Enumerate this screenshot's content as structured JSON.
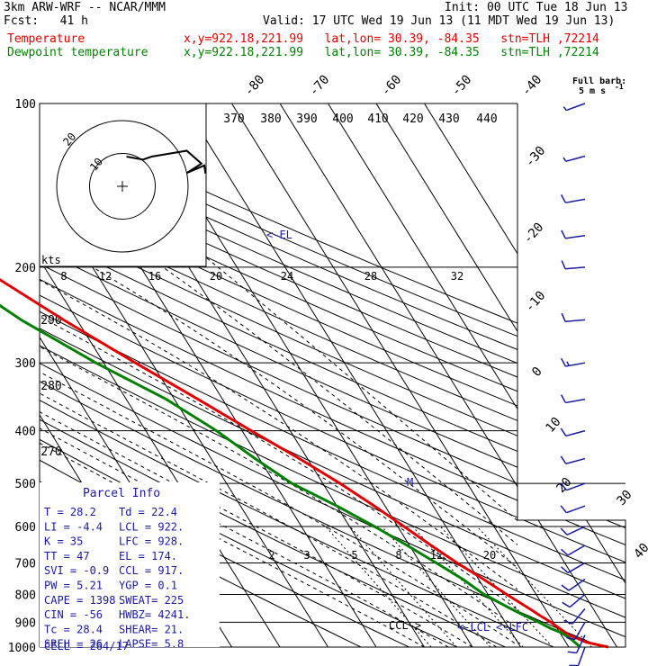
{
  "header": {
    "model": "3km ARW-WRF -- NCAR/MMM",
    "init": "Init: 00 UTC Tue 18 Jun 13",
    "fcst": "Fcst:   41 h",
    "valid": "Valid: 17 UTC Wed 19 Jun 13 (11 MDT Wed 19 Jun 13)",
    "temp_label": "Temperature",
    "temp_info": "x,y=922.18,221.99   lat,lon= 30.39, -84.35   stn=TLH ,72214",
    "dew_label": "Dewpoint temperature",
    "dew_info": "x,y=922.18,221.99   lat,lon= 30.39, -84.35   stn=TLH ,72214"
  },
  "colors": {
    "temperature": "#e00000",
    "dewpoint": "#008000",
    "barbs": "#1a1aa0",
    "grid": "#000000"
  },
  "barb_key": {
    "line1": "Full barb:",
    "line2": "5 m s",
    "sup": "-1"
  },
  "hodograph": {
    "axis_label": "kts",
    "rings": [
      {
        "speed": 10,
        "label": "10"
      },
      {
        "speed": 20,
        "label": "20"
      }
    ],
    "points": [
      [
        0.7,
        2.0
      ],
      [
        3.5,
        1.5
      ],
      [
        5.0,
        2.0
      ],
      [
        11.0,
        3.0
      ],
      [
        13.5,
        0.8
      ],
      [
        11.0,
        -0.8
      ],
      [
        14.0,
        0.5
      ],
      [
        14.2,
        -0.9
      ]
    ]
  },
  "parcel": {
    "title": "Parcel Info",
    "rows": [
      [
        "T  =    28.2",
        "Td  =  22.4"
      ],
      [
        "LI =    -4.4",
        "LCL =  922."
      ],
      [
        "K  =      35",
        "LFC =  928."
      ],
      [
        "TT =      47",
        "EL  =  174."
      ],
      [
        "SVI =   -0.9",
        "CCL =  917."
      ],
      [
        "PW =    5.21",
        "YGP =   0.1"
      ],
      [
        "CAPE =  1398",
        "SWEAT=  225"
      ],
      [
        "CIN =    -56",
        "HWBZ= 4241."
      ],
      [
        "Tc =    28.4",
        "SHEAR=  21."
      ],
      [
        "SREH =    26",
        "LAPSE=  5.8"
      ]
    ],
    "cell": "CELL = 264/17"
  },
  "chart_data": {
    "type": "line",
    "title": "",
    "xlabel": "",
    "ylabel": "",
    "pressure_levels": [
      100,
      200,
      300,
      400,
      500,
      600,
      700,
      800,
      900,
      1000
    ],
    "isotherm_labels": [
      "-80",
      "-70",
      "-60",
      "-50",
      "-40",
      "-30",
      "-20",
      "-10",
      "0",
      "10",
      "20",
      "30",
      "40"
    ],
    "isotherm_values": [
      -80,
      -70,
      -60,
      -50,
      -40,
      -30,
      -20,
      -10,
      0,
      10,
      20,
      30,
      40
    ],
    "theta_labels": [
      "370",
      "380",
      "390",
      "400",
      "410",
      "420",
      "430",
      "440",
      "290",
      "280",
      "270"
    ],
    "theta_values": [
      370,
      380,
      390,
      400,
      410,
      420,
      430,
      440,
      290,
      280,
      270
    ],
    "mixing_ratio_top_labels": [
      "8",
      "12",
      "16",
      "20",
      "24",
      "28",
      "32"
    ],
    "mixing_ratio_top_values": [
      8,
      12,
      16,
      20,
      24,
      28,
      32
    ],
    "mixing_ratio_low_labels": [
      "2",
      "3",
      "5",
      "8",
      "12",
      "20"
    ],
    "mixing_ratio_low_values": [
      2,
      3,
      5,
      8,
      12,
      20
    ],
    "annotations": {
      "el": "<-EL",
      "ccl": "CCL->",
      "lcl": "<-LCL",
      "lfc": "<-LFC",
      "m": "M"
    },
    "series": [
      {
        "name": "Temperature",
        "points": [
          [
            1000,
            28.2
          ],
          [
            980,
            24.3
          ],
          [
            950,
            21.6
          ],
          [
            925,
            20.5
          ],
          [
            900,
            19.5
          ],
          [
            875,
            18.1
          ],
          [
            850,
            16.8
          ],
          [
            800,
            13.9
          ],
          [
            750,
            11.0
          ],
          [
            700,
            7.6
          ],
          [
            650,
            4.5
          ],
          [
            600,
            1.3
          ],
          [
            550,
            -2.2
          ],
          [
            500,
            -6.4
          ],
          [
            450,
            -11.7
          ],
          [
            400,
            -18.1
          ],
          [
            350,
            -25.1
          ],
          [
            300,
            -33.4
          ],
          [
            250,
            -42.8
          ],
          [
            200,
            -53.4
          ],
          [
            175,
            -60.0
          ],
          [
            150,
            -66.0
          ],
          [
            130,
            -68.4
          ],
          [
            115,
            -70.6
          ],
          [
            100,
            -72.7
          ]
        ]
      },
      {
        "name": "Dewpoint temperature",
        "points": [
          [
            1000,
            22.4
          ],
          [
            970,
            21.6
          ],
          [
            940,
            20.3
          ],
          [
            925,
            18.7
          ],
          [
            900,
            17.0
          ],
          [
            875,
            14.9
          ],
          [
            850,
            12.9
          ],
          [
            800,
            9.2
          ],
          [
            750,
            6.7
          ],
          [
            700,
            3.3
          ],
          [
            650,
            -0.5
          ],
          [
            600,
            -4.8
          ],
          [
            550,
            -10.0
          ],
          [
            500,
            -16.4
          ],
          [
            450,
            -20.9
          ],
          [
            400,
            -25.3
          ],
          [
            350,
            -31.7
          ],
          [
            300,
            -41.6
          ],
          [
            250,
            -51.6
          ],
          [
            200,
            -61.1
          ],
          [
            175,
            -68.9
          ],
          [
            150,
            -76.1
          ],
          [
            130,
            -80.1
          ],
          [
            115,
            -81.8
          ],
          [
            100,
            -83.4
          ]
        ]
      }
    ],
    "wind_barbs": [
      {
        "p": 1000,
        "dir": 200,
        "spd": 8
      },
      {
        "p": 950,
        "dir": 205,
        "spd": 9
      },
      {
        "p": 900,
        "dir": 210,
        "spd": 10
      },
      {
        "p": 850,
        "dir": 220,
        "spd": 12
      },
      {
        "p": 800,
        "dir": 230,
        "spd": 12
      },
      {
        "p": 750,
        "dir": 235,
        "spd": 11
      },
      {
        "p": 700,
        "dir": 240,
        "spd": 12
      },
      {
        "p": 650,
        "dir": 240,
        "spd": 11
      },
      {
        "p": 600,
        "dir": 245,
        "spd": 10
      },
      {
        "p": 550,
        "dir": 250,
        "spd": 9
      },
      {
        "p": 500,
        "dir": 250,
        "spd": 9
      },
      {
        "p": 450,
        "dir": 255,
        "spd": 10
      },
      {
        "p": 400,
        "dir": 255,
        "spd": 11
      },
      {
        "p": 350,
        "dir": 260,
        "spd": 12
      },
      {
        "p": 300,
        "dir": 260,
        "spd": 13
      },
      {
        "p": 250,
        "dir": 265,
        "spd": 12
      },
      {
        "p": 200,
        "dir": 265,
        "spd": 11
      },
      {
        "p": 175,
        "dir": 262,
        "spd": 10
      },
      {
        "p": 150,
        "dir": 260,
        "spd": 9
      },
      {
        "p": 125,
        "dir": 255,
        "spd": 7
      },
      {
        "p": 100,
        "dir": 250,
        "spd": 5
      }
    ]
  }
}
